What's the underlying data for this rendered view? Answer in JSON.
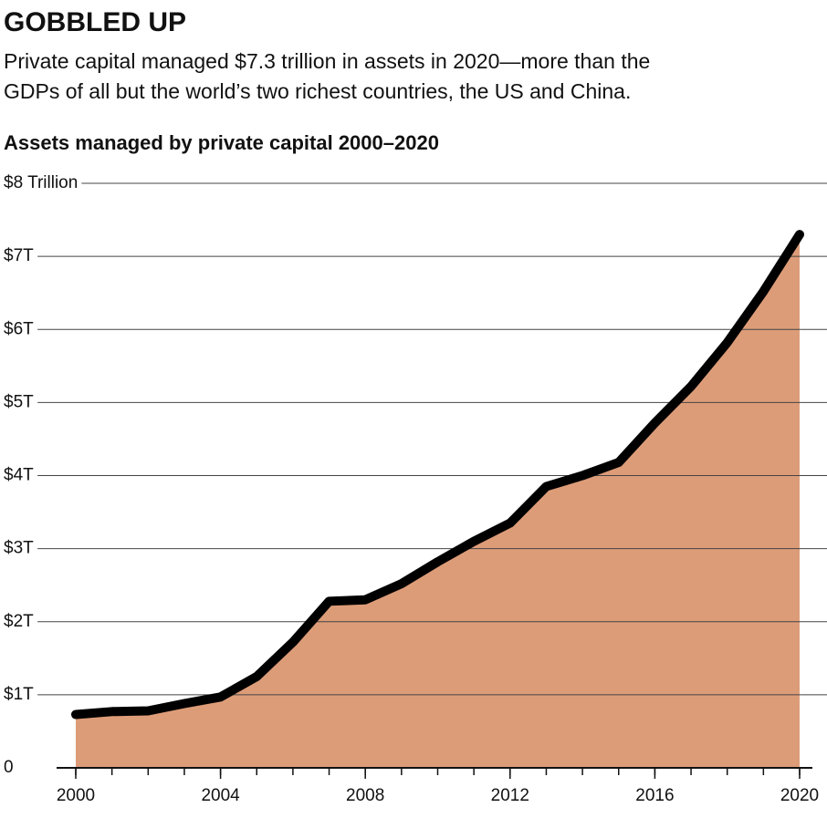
{
  "chart_data": {
    "type": "area",
    "title": "GOBBLED UP",
    "subtitle": [
      "Private capital managed $7.3 trillion in assets in 2020—more than the",
      "GDPs of all but the world’s two richest countries, the US and China."
    ],
    "chart_title": "Assets managed by private capital 2000–2020",
    "x": [
      2000,
      2001,
      2002,
      2003,
      2004,
      2005,
      2006,
      2007,
      2008,
      2009,
      2010,
      2011,
      2012,
      2013,
      2014,
      2015,
      2016,
      2017,
      2018,
      2019,
      2020
    ],
    "values": [
      0.73,
      0.77,
      0.78,
      0.88,
      0.97,
      1.25,
      1.72,
      2.28,
      2.3,
      2.52,
      2.82,
      3.1,
      3.35,
      3.85,
      4.0,
      4.18,
      4.72,
      5.22,
      5.82,
      6.52,
      7.3
    ],
    "color": "#dd9c78",
    "line_color": "#000000",
    "xlim": [
      2000,
      2020
    ],
    "xticks": [
      2000,
      2004,
      2008,
      2012,
      2016,
      2020
    ],
    "ylim": [
      0,
      8
    ],
    "yticks": [
      0,
      {
        "value": 1,
        "label": "$1T"
      },
      {
        "value": 2,
        "label": "$2T"
      },
      {
        "value": 3,
        "label": "$3T"
      },
      {
        "value": 4,
        "label": "$4T"
      },
      {
        "value": 5,
        "label": "$5T"
      },
      {
        "value": 6,
        "label": "$6T"
      },
      {
        "value": 7,
        "label": "$7T"
      },
      {
        "value": 8,
        "label": "$8 Trillion"
      }
    ],
    "grid": true
  }
}
